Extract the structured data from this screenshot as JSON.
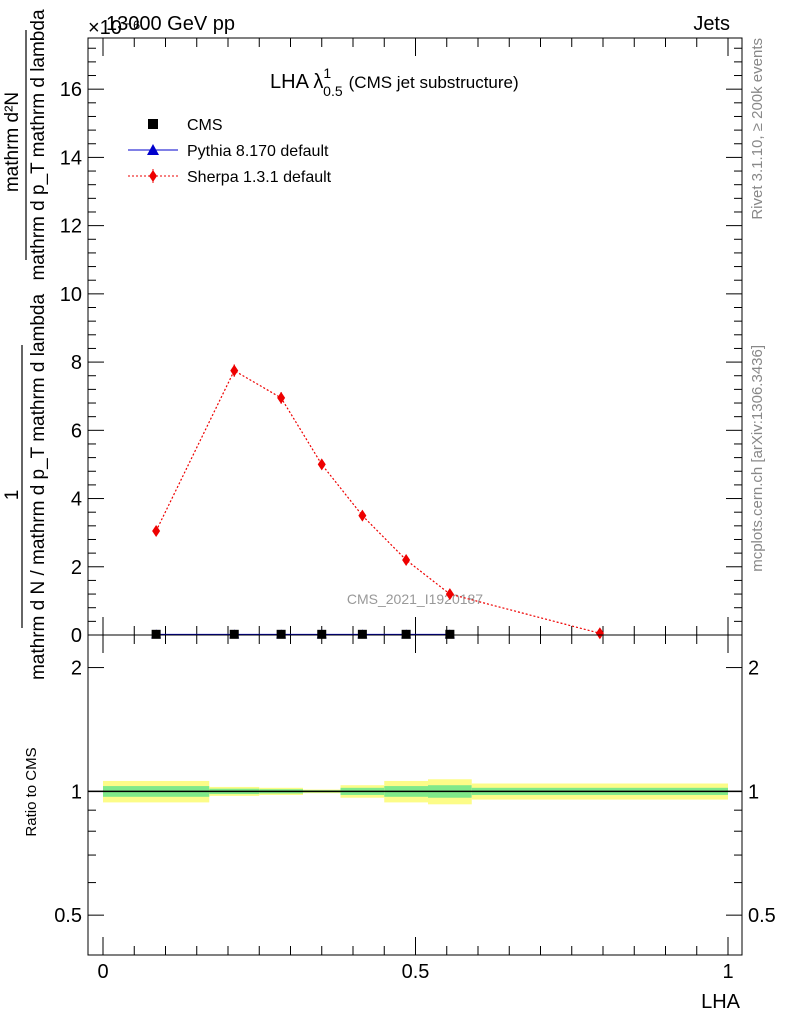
{
  "header": {
    "left": "13000 GeV pp",
    "right": "Jets",
    "exponent": "×10⁻⁶"
  },
  "side_text": {
    "top": "Rivet 3.1.10, ≥ 200k events",
    "bottom": "mcplots.cern.ch [arXiv:1306.3436]"
  },
  "watermark": "CMS_2021_I1920187",
  "chart_data": [
    {
      "type": "scatter",
      "title": {
        "base": "LHA λ",
        "sup": "1",
        "sub": "0.5",
        "suffix": "(CMS jet substructure)"
      },
      "xlim": [
        0,
        1
      ],
      "ylim": [
        0,
        17.5
      ],
      "ylabel": {
        "numerator": "1",
        "denominator": "mathrm d N / mathrm d p_T mathrm d lambda",
        "numerator_text": "mathrm d²N",
        "denominator_text": "mathrm d p_T mathrm d lambda"
      },
      "yticks": [
        0,
        2,
        4,
        6,
        8,
        10,
        12,
        14,
        16
      ],
      "ytick_labels": [
        "0",
        "2",
        "4",
        "6",
        "8",
        "10",
        "12",
        "14",
        "16"
      ],
      "legend": {
        "position": "top-left",
        "entries": [
          "CMS",
          "Pythia 8.170 default",
          "Sherpa 1.3.1 default"
        ]
      },
      "series": [
        {
          "name": "CMS",
          "color": "#000000",
          "marker": "square",
          "x": [
            0.085,
            0.21,
            0.285,
            0.35,
            0.415,
            0.485,
            0.555
          ],
          "y": [
            0.02,
            0.02,
            0.02,
            0.02,
            0.02,
            0.02,
            0.02
          ]
        },
        {
          "name": "Pythia 8.170 default",
          "color": "#0000cc",
          "marker": "triangle",
          "x": [
            0.085,
            0.21,
            0.285,
            0.35,
            0.415,
            0.485,
            0.555
          ],
          "y": [
            0.02,
            0.02,
            0.02,
            0.02,
            0.02,
            0.02,
            0.02
          ]
        },
        {
          "name": "Sherpa 1.3.1 default",
          "color": "#ee0000",
          "marker": "diamond",
          "x": [
            0.085,
            0.21,
            0.285,
            0.35,
            0.415,
            0.485,
            0.555,
            0.795
          ],
          "y": [
            3.05,
            7.75,
            6.95,
            5.0,
            3.5,
            2.2,
            1.2,
            0.05
          ],
          "yerr": [
            0.1,
            0.18,
            0.17,
            0.14,
            0.1,
            0.08,
            0.06,
            0.02
          ]
        }
      ]
    },
    {
      "type": "area",
      "ylabel": "Ratio to CMS",
      "xlabel": "LHA",
      "xlim": [
        0,
        1
      ],
      "ylim": [
        0.4,
        2.4
      ],
      "yscale": "log",
      "yticks": [
        0.5,
        1,
        2
      ],
      "ytick_labels": [
        "0.5",
        "1",
        "2"
      ],
      "xticks": [
        0,
        0.5,
        1
      ],
      "xtick_labels": [
        "0",
        "0.5",
        "1"
      ],
      "reference": 1,
      "bands": {
        "edges": [
          0,
          0.17,
          0.25,
          0.32,
          0.38,
          0.45,
          0.52,
          0.59,
          1.0
        ],
        "inner": [
          0.03,
          0.015,
          0.012,
          0.006,
          0.02,
          0.03,
          0.035,
          0.02
        ],
        "outer": [
          0.06,
          0.025,
          0.02,
          0.01,
          0.035,
          0.06,
          0.07,
          0.045
        ],
        "inner_color": "#7fe98a",
        "outer_color": "#fcfc88"
      }
    }
  ]
}
